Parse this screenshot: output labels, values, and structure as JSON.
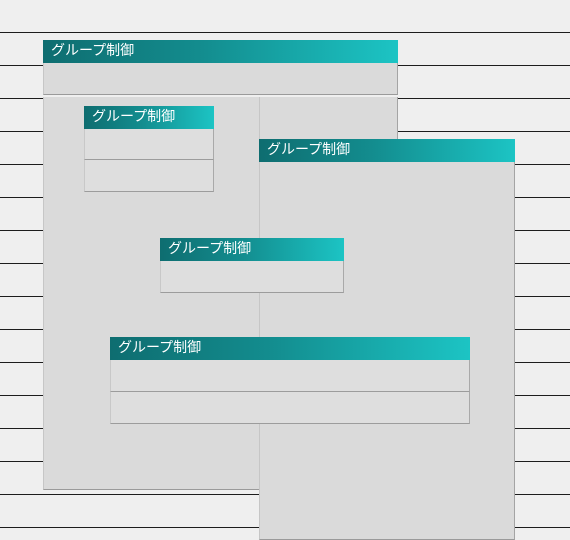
{
  "groups": [
    {
      "title": "グループ制御"
    },
    {
      "title": "グループ制御"
    },
    {
      "title": "グループ制御"
    },
    {
      "title": "グループ制御"
    },
    {
      "title": "グループ制御"
    }
  ]
}
